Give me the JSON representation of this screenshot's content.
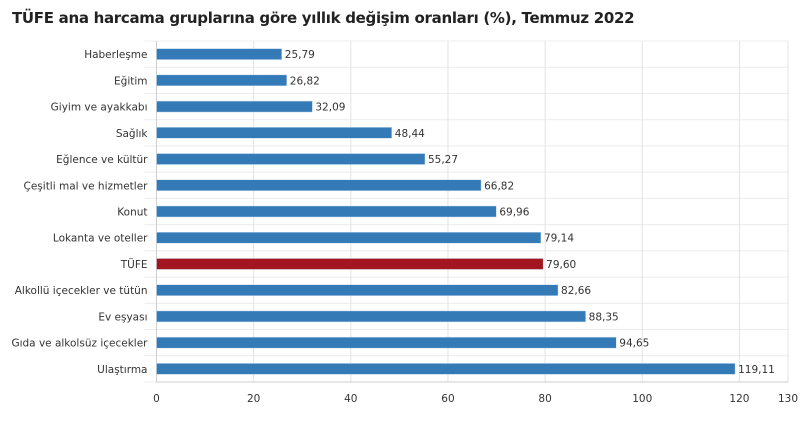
{
  "chart_data": {
    "type": "bar",
    "orientation": "horizontal",
    "title": "TÜFE ana harcama gruplarına göre yıllık değişim oranları (%), Temmuz 2022",
    "categories": [
      "Haberleşme",
      "Eğitim",
      "Giyim ve ayakkabı",
      "Sağlık",
      "Eğlence ve kültür",
      "Çeşitli mal ve hizmetler",
      "Konut",
      "Lokanta ve oteller",
      "TÜFE",
      "Alkollü içecekler ve tütün",
      "Ev eşyası",
      "Gıda ve alkolsüz içecekler",
      "Ulaştırma"
    ],
    "values": [
      25.79,
      26.82,
      32.09,
      48.44,
      55.27,
      66.82,
      69.96,
      79.14,
      79.6,
      82.66,
      88.35,
      94.65,
      119.11
    ],
    "data_labels": [
      "25,79",
      "26,82",
      "32,09",
      "48,44",
      "55,27",
      "66,82",
      "69,96",
      "79,14",
      "79,60",
      "82,66",
      "88,35",
      "94,65",
      "119,11"
    ],
    "xlim": [
      0,
      130
    ],
    "xticks": [
      0,
      20,
      40,
      60,
      80,
      100,
      120,
      130
    ],
    "grid": true,
    "colors": {
      "default": "#337ab7",
      "highlight": "#a31521",
      "highlight_category": "TÜFE"
    }
  }
}
